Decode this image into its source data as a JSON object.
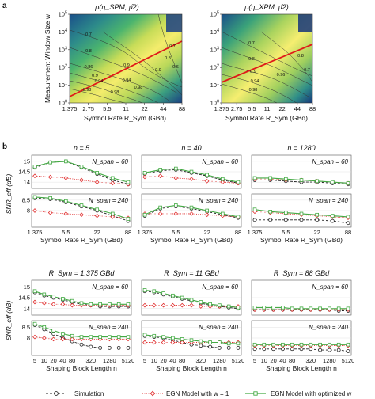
{
  "figure": {
    "panel_a_letter": "a",
    "panel_b_letter": "b"
  },
  "legend": {
    "simulation": "Simulation",
    "egn_w1": "EGN Model with w = 1",
    "egn_opt": "EGN Model with optimized w"
  },
  "colors": {
    "simulation": "#222222",
    "egn_w1": "#e03030",
    "egn_opt": "#44aa44",
    "trend_line": "#e01818"
  },
  "chart_data": [
    {
      "type": "heatmap",
      "title": "ρ(η_SPM, μ̂2)",
      "xlabel": "Symbol Rate R_Sym (GBd)",
      "ylabel": "Measurement Window Size w",
      "x_ticks": [
        "1.375",
        "2.75",
        "5.5",
        "11",
        "22",
        "44",
        "88"
      ],
      "y_ticks": [
        "10^0",
        "10^1",
        "10^2",
        "10^3",
        "10^4",
        "10^5"
      ],
      "contour_labels": [
        "0.7",
        "0.8",
        "0.86",
        "0.9",
        "0.9",
        "0.94",
        "0.94",
        "0.98",
        "0.98",
        "0.98",
        "0.9",
        "0.8",
        "0.7",
        "0.6"
      ],
      "optimum_line": {
        "x": [
          1.375,
          88
        ],
        "y": [
          4,
          3000
        ]
      }
    },
    {
      "type": "heatmap",
      "title": "ρ(η_XPM, μ̂2)",
      "xlabel": "Symbol Rate R_Sym (GBd)",
      "x_ticks": [
        "1.375",
        "2.75",
        "5.5",
        "11",
        "22",
        "44",
        "88"
      ],
      "y_ticks": [
        "10^0",
        "10^1",
        "10^2",
        "10^3",
        "10^4",
        "10^5"
      ],
      "contour_labels": [
        "0.7",
        "0.8",
        "0.9",
        "0.94",
        "0.98",
        "0.96",
        "0.8",
        "0.7"
      ],
      "optimum_line": {
        "x": [
          1.375,
          44
        ],
        "y": [
          25,
          6000
        ]
      }
    },
    {
      "type": "line",
      "panel": "n = 5",
      "xlabel": "Symbol Rate R_Sym (GBd)",
      "ylabel": "SNR_eff (dB)",
      "x_ticks": [
        "1.375",
        "5.5",
        "22",
        "88"
      ],
      "x": [
        1.375,
        2.75,
        5.5,
        11,
        22,
        44,
        88
      ],
      "top": {
        "label": "N_span = 60",
        "y_ticks": [
          "14",
          "14.5",
          "15"
        ],
        "ylim": [
          13.7,
          15.3
        ],
        "series": [
          {
            "name": "Simulation",
            "values": [
              14.7,
              14.95,
              15.0,
              14.7,
              14.4,
              14.1,
              13.9
            ]
          },
          {
            "name": "EGN Model with w = 1",
            "values": [
              14.3,
              14.25,
              14.2,
              14.1,
              14.0,
              13.95,
              13.9
            ]
          },
          {
            "name": "EGN Model with optimized w",
            "values": [
              14.75,
              14.95,
              15.0,
              14.75,
              14.45,
              14.2,
              14.0
            ]
          }
        ]
      },
      "bottom": {
        "label": "N_span = 240",
        "y_ticks": [
          "8",
          "8.5"
        ],
        "ylim": [
          7.2,
          8.8
        ],
        "series": [
          {
            "name": "Simulation",
            "values": [
              8.6,
              8.55,
              8.4,
              8.2,
              8.0,
              7.75,
              7.5
            ]
          },
          {
            "name": "EGN Model with w = 1",
            "values": [
              8.0,
              7.9,
              7.85,
              7.8,
              7.75,
              7.7,
              7.65
            ]
          },
          {
            "name": "EGN Model with optimized w",
            "values": [
              8.65,
              8.6,
              8.45,
              8.25,
              8.05,
              7.85,
              7.6
            ]
          }
        ]
      }
    },
    {
      "type": "line",
      "panel": "n = 40",
      "xlabel": "Symbol Rate R_Sym (GBd)",
      "x_ticks": [
        "1.375",
        "5.5",
        "22",
        "88"
      ],
      "x": [
        1.375,
        2.75,
        5.5,
        11,
        22,
        44,
        88
      ],
      "top": {
        "label": "N_span = 60",
        "y_ticks": [
          "14",
          "14.5",
          "15"
        ],
        "ylim": [
          13.7,
          15.3
        ],
        "series": [
          {
            "name": "Simulation",
            "values": [
              14.4,
              14.55,
              14.6,
              14.45,
              14.3,
              14.1,
              13.95
            ]
          },
          {
            "name": "EGN Model with w = 1",
            "values": [
              14.25,
              14.3,
              14.2,
              14.15,
              14.05,
              14.0,
              13.95
            ]
          },
          {
            "name": "EGN Model with optimized w",
            "values": [
              14.45,
              14.6,
              14.65,
              14.5,
              14.35,
              14.15,
              14.0
            ]
          }
        ]
      },
      "bottom": {
        "label": "N_span = 240",
        "y_ticks": [
          "8",
          "8.5"
        ],
        "ylim": [
          7.2,
          8.8
        ],
        "series": [
          {
            "name": "Simulation",
            "values": [
              7.75,
              8.1,
              8.2,
              8.1,
              7.95,
              7.8,
              7.65
            ]
          },
          {
            "name": "EGN Model with w = 1",
            "values": [
              7.85,
              7.85,
              7.85,
              7.85,
              7.8,
              7.75,
              7.7
            ]
          },
          {
            "name": "EGN Model with optimized w",
            "values": [
              7.8,
              8.15,
              8.25,
              8.15,
              8.0,
              7.85,
              7.7
            ]
          }
        ]
      }
    },
    {
      "type": "line",
      "panel": "n = 1280",
      "xlabel": "Symbol Rate R_Sym (GBd)",
      "x_ticks": [
        "1.375",
        "5.5",
        "22",
        "88"
      ],
      "x": [
        1.375,
        2.75,
        5.5,
        11,
        22,
        44,
        88
      ],
      "top": {
        "label": "N_span = 60",
        "y_ticks": [
          "14",
          "14.5",
          "15"
        ],
        "ylim": [
          13.7,
          15.3
        ],
        "series": [
          {
            "name": "Simulation",
            "values": [
              14.1,
              14.1,
              14.05,
              14.0,
              14.0,
              13.95,
              13.9
            ]
          },
          {
            "name": "EGN Model with w = 1",
            "values": [
              14.15,
              14.15,
              14.1,
              14.1,
              14.05,
              14.0,
              13.95
            ]
          },
          {
            "name": "EGN Model with optimized w",
            "values": [
              14.2,
              14.2,
              14.15,
              14.1,
              14.05,
              14.0,
              13.95
            ]
          }
        ]
      },
      "bottom": {
        "label": "N_span = 240",
        "y_ticks": [
          "8",
          "8.5"
        ],
        "ylim": [
          7.2,
          8.8
        ],
        "series": [
          {
            "name": "Simulation",
            "values": [
              7.55,
              7.55,
              7.55,
              7.55,
              7.55,
              7.5,
              7.4
            ]
          },
          {
            "name": "EGN Model with w = 1",
            "values": [
              7.95,
              7.9,
              7.85,
              7.8,
              7.75,
              7.7,
              7.65
            ]
          },
          {
            "name": "EGN Model with optimized w",
            "values": [
              8.05,
              7.95,
              7.9,
              7.85,
              7.8,
              7.75,
              7.7
            ]
          }
        ]
      }
    },
    {
      "type": "line",
      "panel": "R_Sym = 1.375 GBd",
      "xlabel": "Shaping Block Length n",
      "ylabel": "SNR_eff (dB)",
      "x_ticks": [
        "5",
        "10",
        "20",
        "40",
        "80",
        "320",
        "1280",
        "5120"
      ],
      "x": [
        5,
        10,
        20,
        40,
        80,
        160,
        320,
        640,
        1280,
        2560,
        5120
      ],
      "top": {
        "label": "N_span = 60",
        "y_ticks": [
          "14",
          "14.5",
          "15"
        ],
        "ylim": [
          13.7,
          15.3
        ],
        "series": [
          {
            "name": "Simulation",
            "values": [
              14.75,
              14.6,
              14.5,
              14.4,
              14.3,
              14.2,
              14.15,
              14.1,
              14.1,
              14.1,
              14.1
            ]
          },
          {
            "name": "EGN Model with w = 1",
            "values": [
              14.3,
              14.25,
              14.2,
              14.2,
              14.15,
              14.15,
              14.15,
              14.15,
              14.15,
              14.15,
              14.15
            ]
          },
          {
            "name": "EGN Model with optimized w",
            "values": [
              14.8,
              14.65,
              14.55,
              14.45,
              14.35,
              14.25,
              14.2,
              14.2,
              14.2,
              14.2,
              14.2
            ]
          }
        ]
      },
      "bottom": {
        "label": "N_span = 240",
        "y_ticks": [
          "8",
          "8.5"
        ],
        "ylim": [
          7.2,
          8.8
        ],
        "series": [
          {
            "name": "Simulation",
            "values": [
              8.6,
              8.4,
              8.2,
              8.0,
              7.85,
              7.7,
              7.6,
              7.55,
              7.55,
              7.55,
              7.55
            ]
          },
          {
            "name": "EGN Model with w = 1",
            "values": [
              8.05,
              8.0,
              7.95,
              7.95,
              7.95,
              7.95,
              7.95,
              7.95,
              7.95,
              7.95,
              7.95
            ]
          },
          {
            "name": "EGN Model with optimized w",
            "values": [
              8.65,
              8.5,
              8.35,
              8.2,
              8.1,
              8.05,
              8.05,
              8.05,
              8.05,
              8.05,
              8.05
            ]
          }
        ]
      }
    },
    {
      "type": "line",
      "panel": "R_Sym = 11 GBd",
      "xlabel": "Shaping Block Length n",
      "x_ticks": [
        "5",
        "10",
        "20",
        "40",
        "80",
        "320",
        "1280",
        "5120"
      ],
      "x": [
        5,
        10,
        20,
        40,
        80,
        160,
        320,
        640,
        1280,
        2560,
        5120
      ],
      "top": {
        "label": "N_span = 60",
        "y_ticks": [
          "14",
          "14.5",
          "15"
        ],
        "ylim": [
          13.7,
          15.3
        ],
        "series": [
          {
            "name": "Simulation",
            "values": [
              14.8,
              14.75,
              14.65,
              14.55,
              14.45,
              14.35,
              14.25,
              14.15,
              14.1,
              14.05,
              14.0
            ]
          },
          {
            "name": "EGN Model with w = 1",
            "values": [
              14.15,
              14.15,
              14.15,
              14.15,
              14.15,
              14.15,
              14.1,
              14.1,
              14.1,
              14.1,
              14.1
            ]
          },
          {
            "name": "EGN Model with optimized w",
            "values": [
              14.85,
              14.8,
              14.7,
              14.6,
              14.5,
              14.4,
              14.3,
              14.2,
              14.15,
              14.1,
              14.05
            ]
          }
        ]
      },
      "bottom": {
        "label": "N_span = 240",
        "y_ticks": [
          "8",
          "8.5"
        ],
        "ylim": [
          7.2,
          8.8
        ],
        "series": [
          {
            "name": "Simulation",
            "values": [
              8.1,
              8.05,
              8.0,
              7.9,
              7.8,
              7.7,
              7.65,
              7.6,
              7.55,
              7.55,
              7.55
            ]
          },
          {
            "name": "EGN Model with w = 1",
            "values": [
              7.8,
              7.8,
              7.8,
              7.8,
              7.8,
              7.8,
              7.8,
              7.8,
              7.8,
              7.8,
              7.8
            ]
          },
          {
            "name": "EGN Model with optimized w",
            "values": [
              8.15,
              8.1,
              8.05,
              8.0,
              7.95,
              7.9,
              7.85,
              7.8,
              7.8,
              7.75,
              7.75
            ]
          }
        ]
      }
    },
    {
      "type": "line",
      "panel": "R_Sym = 88 GBd",
      "xlabel": "Shaping Block Length n",
      "x_ticks": [
        "5",
        "10",
        "20",
        "40",
        "80",
        "320",
        "1280",
        "5120"
      ],
      "x": [
        5,
        10,
        20,
        40,
        80,
        160,
        320,
        640,
        1280,
        2560,
        5120
      ],
      "top": {
        "label": "N_span = 60",
        "y_ticks": [
          "14",
          "14.5",
          "15"
        ],
        "ylim": [
          13.7,
          15.3
        ],
        "series": [
          {
            "name": "Simulation",
            "values": [
              13.95,
              13.95,
              13.95,
              13.95,
              13.95,
              13.95,
              13.95,
              13.95,
              13.95,
              13.9,
              13.9
            ]
          },
          {
            "name": "EGN Model with w = 1",
            "values": [
              13.95,
              13.95,
              13.95,
              13.95,
              13.95,
              13.95,
              13.95,
              13.95,
              13.95,
              13.95,
              13.95
            ]
          },
          {
            "name": "EGN Model with optimized w",
            "values": [
              14.05,
              14.05,
              14.05,
              14.05,
              14.0,
              14.0,
              14.0,
              14.0,
              14.0,
              14.0,
              14.0
            ]
          }
        ]
      },
      "bottom": {
        "label": "N_span = 240",
        "y_ticks": [
          "8",
          "8.5"
        ],
        "ylim": [
          7.2,
          8.8
        ],
        "series": [
          {
            "name": "Simulation",
            "values": [
              7.5,
              7.5,
              7.5,
              7.5,
              7.5,
              7.5,
              7.5,
              7.45,
              7.45,
              7.45,
              7.4
            ]
          },
          {
            "name": "EGN Model with w = 1",
            "values": [
              7.65,
              7.65,
              7.65,
              7.65,
              7.65,
              7.65,
              7.65,
              7.65,
              7.65,
              7.65,
              7.65
            ]
          },
          {
            "name": "EGN Model with optimized w",
            "values": [
              7.7,
              7.7,
              7.7,
              7.7,
              7.7,
              7.7,
              7.7,
              7.7,
              7.7,
              7.7,
              7.7
            ]
          }
        ]
      }
    }
  ]
}
